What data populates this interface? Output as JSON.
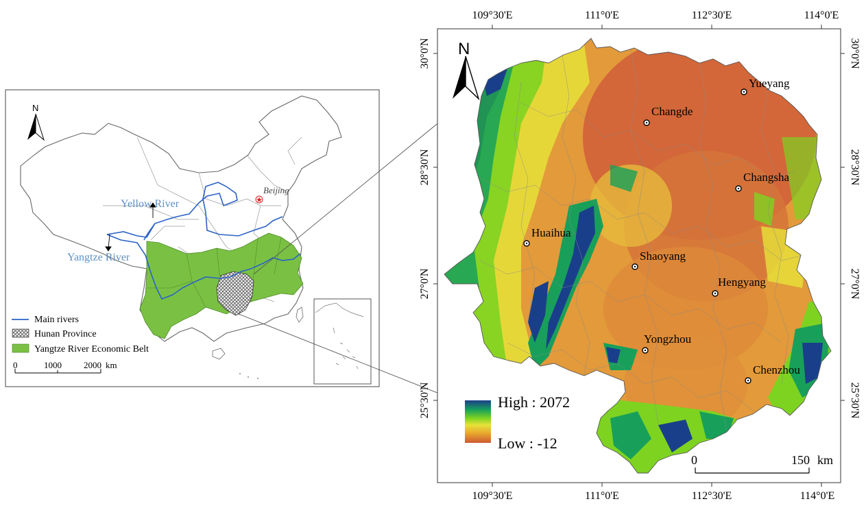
{
  "inset": {
    "north_label": "N",
    "beijing_label": "Beijing",
    "yellow_river_label": "Yellow River",
    "yangtze_river_label": "Yangtze River",
    "legend": {
      "rivers": "Main rivers",
      "hunan": "Hunan Province",
      "belt": "Yangtze River Economic Belt"
    },
    "scale": {
      "t0": "0",
      "t1": "1000",
      "t2": "2000",
      "unit": "km"
    },
    "colors": {
      "belt": "#7ac143",
      "river": "#2b62c8",
      "river_label": "#5d8fc4",
      "beijing": "#e02020"
    }
  },
  "main_map": {
    "north_label": "N",
    "lon_ticks": [
      "109°30'E",
      "111°0'E",
      "112°30'E",
      "114°0'E"
    ],
    "lat_ticks": [
      "30°0'N",
      "28°30'N",
      "27°0'N",
      "25°30'N"
    ],
    "cities": [
      "Yueyang",
      "Changde",
      "Changsha",
      "Huaihua",
      "Shaoyang",
      "Hengyang",
      "Yongzhou",
      "Chenzhou"
    ],
    "legend": {
      "high": "High : 2072",
      "low": "Low : -12"
    },
    "scale": {
      "t0": "0",
      "t1": "150",
      "unit": "km"
    },
    "elevation_colors": [
      "#1a3f8a",
      "#18a05a",
      "#7ed321",
      "#e6e23a",
      "#e8a52e",
      "#cc5a33"
    ]
  }
}
